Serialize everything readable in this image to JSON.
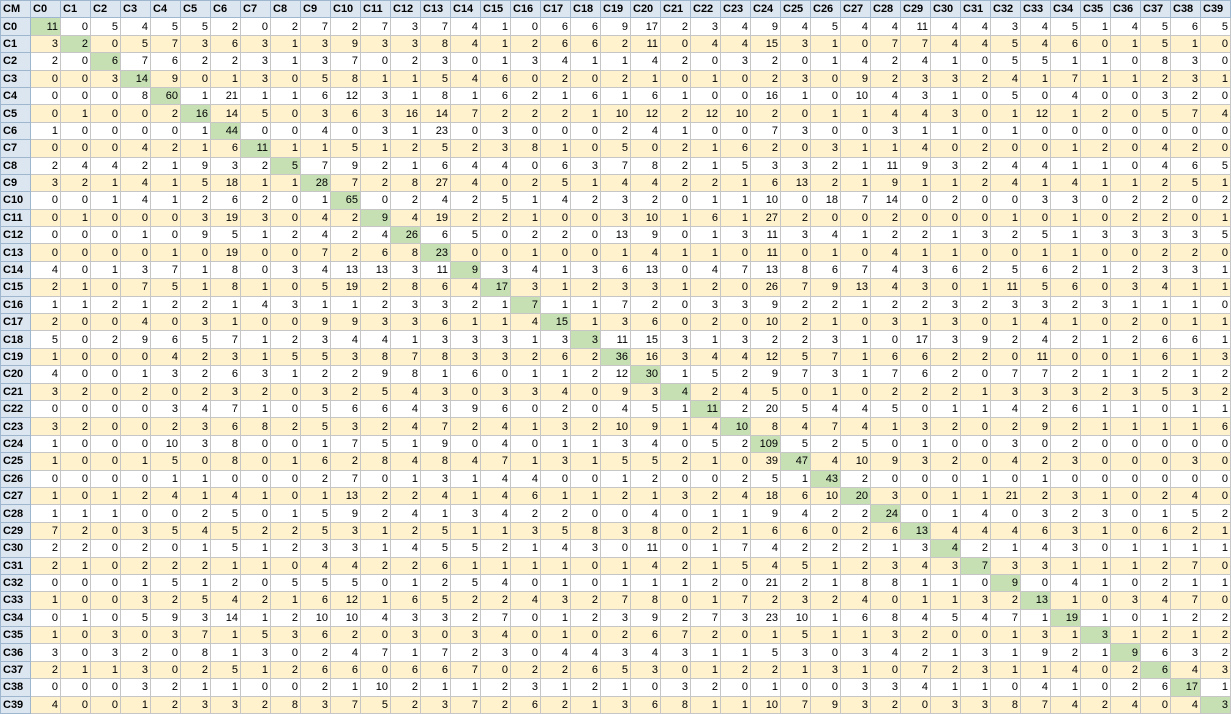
{
  "corner_label": "CM",
  "column_headers": [
    "C0",
    "C1",
    "C2",
    "C3",
    "C4",
    "C5",
    "C6",
    "C7",
    "C8",
    "C9",
    "C10",
    "C11",
    "C12",
    "C13",
    "C14",
    "C15",
    "C16",
    "C17",
    "C18",
    "C19",
    "C20",
    "C21",
    "C22",
    "C23",
    "C24",
    "C25",
    "C26",
    "C27",
    "C28",
    "C29",
    "C30",
    "C31",
    "C32",
    "C33",
    "C34",
    "C35",
    "C36",
    "C37",
    "C38",
    "C39"
  ],
  "row_headers": [
    "C0",
    "C1",
    "C2",
    "C3",
    "C4",
    "C5",
    "C6",
    "C7",
    "C8",
    "C9",
    "C10",
    "C11",
    "C12",
    "C13",
    "C14",
    "C15",
    "C16",
    "C17",
    "C18",
    "C19",
    "C20",
    "C21",
    "C22",
    "C23",
    "C24",
    "C25",
    "C26",
    "C27",
    "C28",
    "C29",
    "C30",
    "C31",
    "C32",
    "C33",
    "C34",
    "C35",
    "C36",
    "C37",
    "C38",
    "C39"
  ],
  "rows": [
    [
      11,
      0,
      5,
      4,
      5,
      5,
      2,
      0,
      2,
      7,
      2,
      7,
      3,
      7,
      4,
      1,
      0,
      6,
      6,
      9,
      17,
      2,
      3,
      4,
      9,
      4,
      5,
      4,
      4,
      11,
      4,
      4,
      3,
      4,
      5,
      1,
      4,
      5,
      6,
      5
    ],
    [
      3,
      2,
      0,
      5,
      7,
      3,
      6,
      3,
      1,
      3,
      9,
      3,
      3,
      8,
      4,
      1,
      2,
      6,
      6,
      2,
      11,
      0,
      4,
      4,
      15,
      3,
      1,
      0,
      7,
      7,
      4,
      4,
      5,
      4,
      6,
      0,
      1,
      5,
      1,
      0
    ],
    [
      2,
      0,
      6,
      7,
      6,
      2,
      2,
      3,
      1,
      3,
      7,
      0,
      2,
      3,
      0,
      1,
      3,
      4,
      1,
      1,
      4,
      2,
      0,
      3,
      2,
      0,
      1,
      4,
      2,
      4,
      1,
      0,
      5,
      5,
      1,
      1,
      0,
      8,
      3,
      0
    ],
    [
      0,
      0,
      3,
      14,
      9,
      0,
      1,
      3,
      0,
      5,
      8,
      1,
      1,
      5,
      4,
      6,
      0,
      2,
      0,
      2,
      1,
      0,
      1,
      0,
      2,
      3,
      0,
      9,
      2,
      3,
      3,
      2,
      4,
      1,
      7,
      1,
      1,
      2,
      3,
      1
    ],
    [
      0,
      0,
      0,
      8,
      60,
      1,
      21,
      1,
      1,
      6,
      12,
      3,
      1,
      8,
      1,
      6,
      2,
      1,
      6,
      1,
      6,
      1,
      0,
      0,
      16,
      1,
      0,
      10,
      4,
      3,
      1,
      0,
      5,
      0,
      4,
      0,
      0,
      3,
      2,
      0
    ],
    [
      0,
      1,
      0,
      0,
      2,
      16,
      14,
      5,
      0,
      3,
      6,
      3,
      16,
      14,
      7,
      2,
      2,
      2,
      1,
      10,
      12,
      2,
      12,
      10,
      2,
      0,
      1,
      1,
      4,
      4,
      3,
      0,
      1,
      12,
      1,
      2,
      0,
      5,
      7,
      4
    ],
    [
      1,
      0,
      0,
      0,
      0,
      1,
      44,
      0,
      0,
      4,
      0,
      3,
      1,
      23,
      0,
      3,
      0,
      0,
      0,
      2,
      4,
      1,
      0,
      0,
      7,
      3,
      0,
      0,
      3,
      1,
      1,
      0,
      1,
      0,
      0,
      0,
      0,
      0,
      0,
      0
    ],
    [
      0,
      0,
      0,
      4,
      2,
      1,
      6,
      11,
      1,
      1,
      5,
      1,
      2,
      5,
      2,
      3,
      8,
      1,
      0,
      5,
      0,
      2,
      1,
      6,
      2,
      0,
      3,
      1,
      1,
      4,
      0,
      2,
      0,
      0,
      1,
      2,
      0,
      4,
      2,
      0
    ],
    [
      2,
      4,
      4,
      2,
      1,
      9,
      3,
      2,
      5,
      7,
      9,
      2,
      1,
      6,
      4,
      4,
      0,
      6,
      3,
      7,
      8,
      2,
      1,
      5,
      3,
      3,
      2,
      1,
      11,
      9,
      3,
      2,
      4,
      4,
      1,
      1,
      0,
      4,
      6,
      5
    ],
    [
      3,
      2,
      1,
      4,
      1,
      5,
      18,
      1,
      1,
      28,
      7,
      2,
      8,
      27,
      4,
      0,
      2,
      5,
      1,
      4,
      4,
      2,
      2,
      1,
      6,
      13,
      2,
      1,
      9,
      1,
      1,
      2,
      4,
      1,
      4,
      1,
      1,
      2,
      5,
      1
    ],
    [
      0,
      0,
      1,
      4,
      1,
      2,
      6,
      2,
      0,
      1,
      65,
      0,
      2,
      4,
      2,
      5,
      1,
      4,
      2,
      3,
      2,
      0,
      1,
      1,
      10,
      0,
      18,
      7,
      14,
      0,
      2,
      0,
      0,
      3,
      3,
      0,
      2,
      2,
      0,
      2
    ],
    [
      0,
      1,
      0,
      0,
      0,
      3,
      19,
      3,
      0,
      4,
      2,
      9,
      4,
      19,
      2,
      2,
      1,
      0,
      0,
      3,
      10,
      1,
      6,
      1,
      27,
      2,
      0,
      0,
      2,
      0,
      0,
      0,
      1,
      0,
      1,
      0,
      2,
      2,
      0,
      1
    ],
    [
      0,
      0,
      0,
      1,
      0,
      9,
      5,
      1,
      2,
      4,
      2,
      4,
      26,
      6,
      5,
      0,
      2,
      2,
      0,
      13,
      9,
      0,
      1,
      3,
      11,
      3,
      4,
      1,
      2,
      2,
      1,
      3,
      2,
      5,
      1,
      3,
      3,
      3,
      3,
      5
    ],
    [
      0,
      0,
      0,
      0,
      1,
      0,
      19,
      0,
      0,
      7,
      2,
      6,
      8,
      23,
      0,
      0,
      1,
      0,
      0,
      1,
      4,
      1,
      1,
      0,
      11,
      0,
      1,
      0,
      4,
      1,
      1,
      0,
      0,
      1,
      1,
      0,
      0,
      2,
      2,
      0
    ],
    [
      4,
      0,
      1,
      3,
      7,
      1,
      8,
      0,
      3,
      4,
      13,
      13,
      3,
      11,
      9,
      3,
      4,
      1,
      3,
      6,
      13,
      0,
      4,
      7,
      13,
      8,
      6,
      7,
      4,
      3,
      6,
      2,
      5,
      6,
      2,
      1,
      2,
      3,
      3,
      1
    ],
    [
      2,
      1,
      0,
      7,
      5,
      1,
      8,
      1,
      0,
      5,
      19,
      2,
      8,
      6,
      4,
      17,
      3,
      1,
      2,
      3,
      3,
      1,
      2,
      0,
      26,
      7,
      9,
      13,
      4,
      3,
      0,
      1,
      11,
      5,
      6,
      0,
      3,
      4,
      1,
      1
    ],
    [
      1,
      1,
      2,
      1,
      2,
      2,
      1,
      4,
      3,
      1,
      1,
      2,
      3,
      3,
      2,
      1,
      7,
      1,
      1,
      7,
      2,
      0,
      3,
      3,
      9,
      2,
      2,
      1,
      2,
      2,
      3,
      2,
      3,
      3,
      2,
      3,
      1,
      1,
      1,
      0
    ],
    [
      2,
      0,
      0,
      4,
      0,
      3,
      1,
      0,
      0,
      9,
      9,
      3,
      3,
      6,
      1,
      1,
      4,
      15,
      1,
      3,
      6,
      0,
      2,
      0,
      10,
      2,
      1,
      0,
      3,
      1,
      3,
      0,
      1,
      4,
      1,
      0,
      2,
      0,
      1,
      1
    ],
    [
      5,
      0,
      2,
      9,
      6,
      5,
      7,
      1,
      2,
      3,
      4,
      4,
      1,
      3,
      3,
      3,
      1,
      3,
      3,
      11,
      15,
      3,
      1,
      3,
      2,
      2,
      3,
      1,
      0,
      17,
      3,
      9,
      2,
      4,
      2,
      1,
      2,
      6,
      6,
      1
    ],
    [
      1,
      0,
      0,
      0,
      4,
      2,
      3,
      1,
      5,
      5,
      3,
      8,
      7,
      8,
      3,
      3,
      2,
      6,
      2,
      36,
      16,
      3,
      4,
      4,
      12,
      5,
      7,
      1,
      6,
      6,
      2,
      2,
      0,
      11,
      0,
      0,
      1,
      6,
      1,
      3
    ],
    [
      4,
      0,
      0,
      1,
      3,
      2,
      6,
      3,
      1,
      2,
      2,
      9,
      8,
      1,
      6,
      0,
      1,
      1,
      2,
      12,
      30,
      1,
      5,
      2,
      9,
      7,
      3,
      1,
      7,
      6,
      2,
      0,
      7,
      7,
      2,
      1,
      1,
      2,
      1,
      2
    ],
    [
      3,
      2,
      0,
      2,
      0,
      2,
      3,
      2,
      0,
      3,
      2,
      5,
      4,
      3,
      0,
      3,
      3,
      4,
      0,
      9,
      3,
      4,
      2,
      4,
      5,
      0,
      1,
      0,
      2,
      2,
      2,
      1,
      3,
      3,
      3,
      2,
      3,
      5,
      3,
      2
    ],
    [
      0,
      0,
      0,
      0,
      3,
      4,
      7,
      1,
      0,
      5,
      6,
      6,
      4,
      3,
      9,
      6,
      0,
      2,
      0,
      4,
      5,
      1,
      11,
      2,
      20,
      5,
      4,
      4,
      5,
      0,
      1,
      1,
      4,
      2,
      6,
      1,
      1,
      0,
      1,
      1
    ],
    [
      3,
      2,
      0,
      0,
      2,
      3,
      6,
      8,
      2,
      5,
      3,
      2,
      4,
      7,
      2,
      4,
      1,
      3,
      2,
      10,
      9,
      1,
      4,
      10,
      8,
      4,
      7,
      4,
      1,
      3,
      2,
      0,
      2,
      9,
      2,
      1,
      1,
      1,
      1,
      6
    ],
    [
      1,
      0,
      0,
      0,
      10,
      3,
      8,
      0,
      0,
      1,
      7,
      5,
      1,
      9,
      0,
      4,
      0,
      1,
      1,
      3,
      4,
      0,
      5,
      2,
      109,
      5,
      2,
      5,
      0,
      1,
      0,
      0,
      3,
      0,
      2,
      0,
      0,
      0,
      0,
      0
    ],
    [
      1,
      0,
      0,
      1,
      5,
      0,
      8,
      0,
      1,
      6,
      2,
      8,
      4,
      8,
      4,
      7,
      1,
      3,
      1,
      5,
      5,
      2,
      1,
      0,
      39,
      47,
      4,
      10,
      9,
      3,
      2,
      0,
      4,
      2,
      3,
      0,
      0,
      0,
      3,
      0
    ],
    [
      0,
      0,
      0,
      0,
      1,
      1,
      0,
      0,
      0,
      2,
      7,
      0,
      1,
      3,
      1,
      4,
      4,
      0,
      0,
      1,
      2,
      0,
      0,
      2,
      5,
      1,
      43,
      2,
      0,
      0,
      0,
      1,
      0,
      1,
      0,
      0,
      0,
      0,
      0,
      0
    ],
    [
      1,
      0,
      1,
      2,
      4,
      1,
      4,
      1,
      0,
      1,
      13,
      2,
      2,
      4,
      1,
      4,
      6,
      1,
      1,
      2,
      1,
      3,
      2,
      4,
      18,
      6,
      10,
      20,
      3,
      0,
      1,
      1,
      21,
      2,
      3,
      1,
      0,
      2,
      4,
      0
    ],
    [
      1,
      1,
      1,
      0,
      0,
      2,
      5,
      0,
      1,
      5,
      9,
      2,
      4,
      1,
      3,
      4,
      2,
      2,
      0,
      0,
      4,
      0,
      1,
      1,
      9,
      4,
      2,
      2,
      24,
      0,
      1,
      4,
      0,
      3,
      2,
      3,
      0,
      1,
      5,
      2
    ],
    [
      7,
      2,
      0,
      3,
      5,
      4,
      5,
      2,
      2,
      5,
      3,
      1,
      2,
      5,
      1,
      1,
      3,
      5,
      8,
      3,
      8,
      0,
      2,
      1,
      6,
      6,
      0,
      2,
      6,
      13,
      4,
      4,
      4,
      6,
      3,
      1,
      0,
      6,
      2,
      1
    ],
    [
      2,
      2,
      0,
      2,
      0,
      1,
      5,
      1,
      2,
      3,
      3,
      1,
      4,
      5,
      5,
      2,
      1,
      4,
      3,
      0,
      11,
      0,
      1,
      7,
      4,
      2,
      2,
      2,
      1,
      3,
      4,
      2,
      1,
      4,
      3,
      0,
      1,
      1,
      1,
      1
    ],
    [
      2,
      1,
      0,
      2,
      2,
      2,
      1,
      1,
      0,
      4,
      4,
      2,
      2,
      6,
      1,
      1,
      1,
      1,
      0,
      1,
      4,
      2,
      1,
      5,
      4,
      5,
      1,
      2,
      3,
      4,
      3,
      7,
      3,
      3,
      1,
      1,
      1,
      2,
      7,
      0
    ],
    [
      0,
      0,
      0,
      1,
      5,
      1,
      2,
      0,
      5,
      5,
      5,
      0,
      1,
      2,
      5,
      4,
      0,
      1,
      0,
      1,
      1,
      1,
      2,
      0,
      21,
      2,
      1,
      8,
      8,
      1,
      1,
      0,
      9,
      0,
      4,
      1,
      0,
      2,
      1,
      1
    ],
    [
      1,
      0,
      0,
      3,
      2,
      5,
      4,
      2,
      1,
      6,
      12,
      1,
      6,
      5,
      2,
      2,
      4,
      3,
      2,
      7,
      8,
      0,
      1,
      7,
      2,
      3,
      2,
      4,
      0,
      1,
      1,
      3,
      2,
      13,
      1,
      0,
      3,
      4,
      7,
      0
    ],
    [
      0,
      1,
      0,
      5,
      9,
      3,
      14,
      1,
      2,
      10,
      10,
      4,
      3,
      3,
      2,
      7,
      0,
      1,
      2,
      3,
      9,
      2,
      7,
      3,
      23,
      10,
      1,
      6,
      8,
      4,
      5,
      4,
      7,
      1,
      19,
      1,
      0,
      1,
      2,
      2
    ],
    [
      1,
      0,
      3,
      0,
      3,
      7,
      1,
      5,
      3,
      6,
      2,
      0,
      3,
      0,
      3,
      4,
      0,
      1,
      0,
      2,
      6,
      7,
      2,
      0,
      1,
      5,
      1,
      1,
      3,
      2,
      0,
      0,
      1,
      3,
      1,
      3,
      1,
      2,
      1,
      2
    ],
    [
      3,
      0,
      3,
      2,
      0,
      8,
      1,
      3,
      0,
      2,
      4,
      7,
      1,
      7,
      2,
      3,
      0,
      4,
      4,
      3,
      4,
      3,
      1,
      1,
      5,
      3,
      0,
      3,
      4,
      2,
      1,
      3,
      1,
      9,
      2,
      1,
      9,
      6,
      3,
      2
    ],
    [
      2,
      1,
      1,
      3,
      0,
      2,
      5,
      1,
      2,
      6,
      6,
      0,
      6,
      6,
      7,
      0,
      2,
      2,
      6,
      5,
      3,
      0,
      1,
      2,
      2,
      1,
      3,
      1,
      0,
      7,
      2,
      3,
      1,
      1,
      4,
      0,
      2,
      6,
      4,
      3
    ],
    [
      0,
      0,
      0,
      3,
      2,
      1,
      1,
      0,
      0,
      2,
      1,
      10,
      2,
      1,
      1,
      2,
      3,
      1,
      2,
      1,
      0,
      3,
      2,
      0,
      1,
      0,
      0,
      3,
      3,
      4,
      1,
      1,
      0,
      4,
      1,
      0,
      2,
      6,
      17,
      1
    ],
    [
      4,
      0,
      0,
      1,
      2,
      3,
      3,
      2,
      8,
      3,
      7,
      5,
      2,
      3,
      7,
      2,
      6,
      2,
      1,
      3,
      6,
      8,
      1,
      1,
      10,
      7,
      9,
      3,
      2,
      0,
      3,
      3,
      8,
      7,
      4,
      2,
      4,
      0,
      4,
      3
    ]
  ]
}
